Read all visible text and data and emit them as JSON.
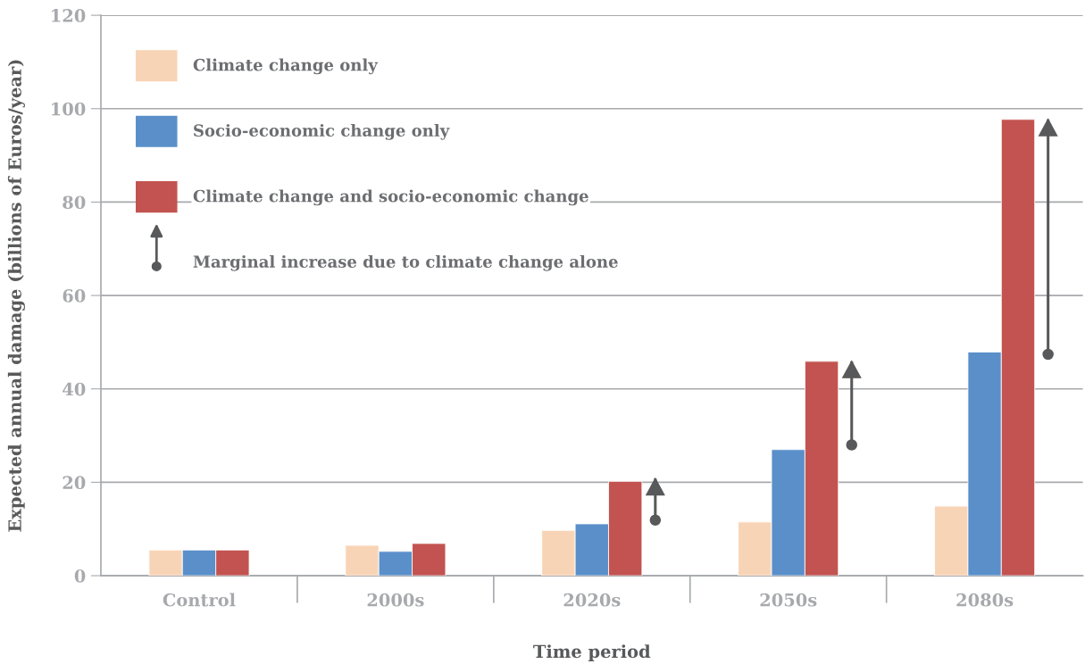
{
  "chart_data": {
    "type": "bar",
    "xlabel": "Time period",
    "ylabel": "Expected annual damage (billions of Euros/year)",
    "categories": [
      "Control",
      "2000s",
      "2020s",
      "2050s",
      "2080s"
    ],
    "series": [
      {
        "name": "Climate change only",
        "color": "#f8d4b6",
        "values": [
          5.5,
          6.5,
          9.7,
          11.5,
          14.9
        ]
      },
      {
        "name": "Socio-economic change only",
        "color": "#5a8fca",
        "values": [
          5.5,
          5.2,
          11.1,
          27,
          47.9
        ]
      },
      {
        "name": "Climate change and socio-economic change",
        "color": "#c25350",
        "values": [
          5.5,
          6.9,
          20.2,
          45.9,
          97.7
        ]
      },
      {
        "name": "Marginal increase due to climate change alone",
        "color": "#58595b",
        "base": [
          null,
          null,
          11.9,
          28,
          47.4
        ],
        "values": [
          null,
          null,
          8.9,
          17.9,
          50.3
        ]
      }
    ],
    "ylim": [
      0,
      120
    ],
    "yticks": [
      0,
      20,
      40,
      60,
      80,
      100,
      120
    ],
    "grid": "y",
    "legend": "top left"
  }
}
